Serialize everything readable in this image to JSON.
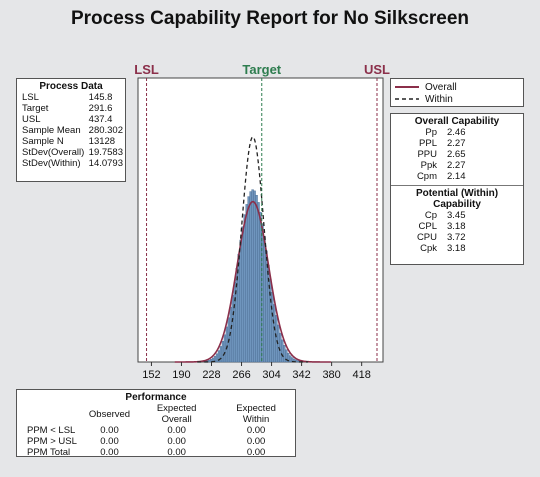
{
  "title": "Process Capability Report for No Silkscreen",
  "colors": {
    "limits": "#8b2f4a",
    "target": "#2e7d4f",
    "bars": "#6f95bd",
    "overall": "#8b2f4a",
    "within": "#222222"
  },
  "process_data": {
    "title": "Process Data",
    "rows": [
      {
        "label": "LSL",
        "value": "145.8"
      },
      {
        "label": "Target",
        "value": "291.6"
      },
      {
        "label": "USL",
        "value": "437.4"
      },
      {
        "label": "Sample Mean",
        "value": "280.302"
      },
      {
        "label": "Sample N",
        "value": "13128"
      },
      {
        "label": "StDev(Overall)",
        "value": "19.7583"
      },
      {
        "label": "StDev(Within)",
        "value": "14.0793"
      }
    ]
  },
  "legend": {
    "overall": "Overall",
    "within": "Within"
  },
  "overall_capability": {
    "title": "Overall Capability",
    "rows": [
      {
        "label": "Pp",
        "value": "2.46"
      },
      {
        "label": "PPL",
        "value": "2.27"
      },
      {
        "label": "PPU",
        "value": "2.65"
      },
      {
        "label": "Ppk",
        "value": "2.27"
      },
      {
        "label": "Cpm",
        "value": "2.14"
      }
    ]
  },
  "within_capability": {
    "title": "Potential (Within) Capability",
    "rows": [
      {
        "label": "Cp",
        "value": "3.45"
      },
      {
        "label": "CPL",
        "value": "3.18"
      },
      {
        "label": "CPU",
        "value": "3.72"
      },
      {
        "label": "Cpk",
        "value": "3.18"
      }
    ]
  },
  "performance": {
    "title": "Performance",
    "headers": [
      "",
      "Observed",
      "Expected Overall",
      "Expected Within"
    ],
    "rows": [
      [
        "PPM < LSL",
        "0.00",
        "0.00",
        "0.00"
      ],
      [
        "PPM > USL",
        "0.00",
        "0.00",
        "0.00"
      ],
      [
        "PPM Total",
        "0.00",
        "0.00",
        "0.00"
      ]
    ]
  },
  "chart_data": {
    "type": "bar",
    "limits": {
      "lsl": 145.8,
      "target": 291.6,
      "usl": 437.4
    },
    "limit_labels": {
      "lsl": "LSL",
      "target": "Target",
      "usl": "USL"
    },
    "xlim": [
      135,
      445
    ],
    "xticks": [
      152,
      190,
      228,
      266,
      304,
      342,
      380,
      418
    ],
    "mean": 280.302,
    "stdev_overall": 19.7583,
    "stdev_within": 14.0793,
    "n": 13128,
    "bin_width": 2.5,
    "series": [
      {
        "name": "Overall",
        "kind": "normal-curve"
      },
      {
        "name": "Within",
        "kind": "normal-curve"
      }
    ]
  }
}
